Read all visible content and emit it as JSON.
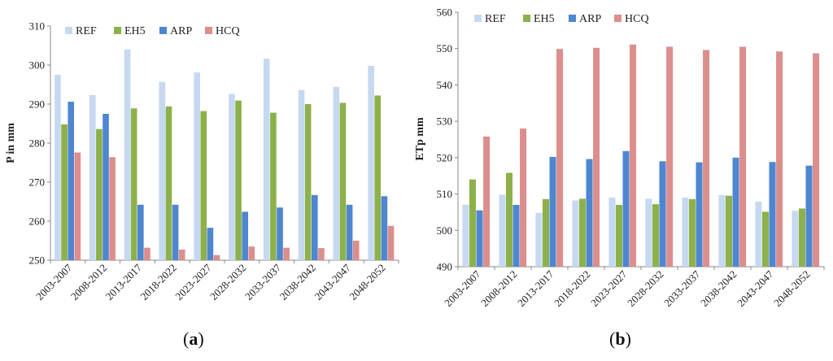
{
  "chart_data": [
    {
      "type": "bar",
      "panel_label": "a",
      "ylabel": "P in mm",
      "ylim": [
        250,
        310
      ],
      "yticks": [
        250,
        260,
        270,
        280,
        290,
        300,
        310
      ],
      "grid": false,
      "legend": "top-left",
      "categories": [
        "2003-2007",
        "2008-2012",
        "2013-2017",
        "2018-2022",
        "2023-2027",
        "2028-2032",
        "2033-2037",
        "2038-2042",
        "2043-2047",
        "2048-2052"
      ],
      "series": [
        {
          "name": "REF",
          "color": "#c6d9f1",
          "values": [
            297.5,
            292.3,
            304.0,
            295.7,
            298.1,
            292.6,
            301.6,
            293.6,
            294.4,
            299.8
          ]
        },
        {
          "name": "EH5",
          "color": "#8db14a",
          "values": [
            284.8,
            283.6,
            288.9,
            289.4,
            288.2,
            290.9,
            287.8,
            290.0,
            290.3,
            292.2
          ]
        },
        {
          "name": "ARP",
          "color": "#4f86d0",
          "values": [
            290.6,
            287.5,
            264.2,
            264.2,
            258.3,
            262.4,
            263.5,
            266.7,
            264.2,
            266.4
          ]
        },
        {
          "name": "HCQ",
          "color": "#dc8e8d",
          "values": [
            277.6,
            276.4,
            253.2,
            252.7,
            251.3,
            253.5,
            253.2,
            253.1,
            255.0,
            258.8
          ]
        }
      ]
    },
    {
      "type": "bar",
      "panel_label": "b",
      "ylabel": "ETp mm",
      "ylim": [
        490,
        560
      ],
      "yticks": [
        490,
        500,
        510,
        520,
        530,
        540,
        550,
        560
      ],
      "grid": false,
      "legend": "top-left",
      "categories": [
        "2003-2007",
        "2008-2012",
        "2013-2017",
        "2018-2022",
        "2023-2027",
        "2028-2032",
        "2033-2037",
        "2038-2042",
        "2043-2047",
        "2048-2052"
      ],
      "series": [
        {
          "name": "REF",
          "color": "#c6d9f1",
          "values": [
            507.0,
            509.8,
            504.8,
            508.2,
            509.0,
            508.7,
            509.0,
            509.7,
            507.9,
            505.4
          ]
        },
        {
          "name": "EH5",
          "color": "#8db14a",
          "values": [
            514.0,
            515.8,
            508.6,
            508.7,
            507.0,
            507.2,
            508.6,
            509.5,
            505.1,
            506.0
          ]
        },
        {
          "name": "ARP",
          "color": "#4f86d0",
          "values": [
            505.5,
            507.0,
            520.2,
            519.6,
            521.8,
            519.0,
            518.7,
            520.0,
            518.8,
            517.8
          ]
        },
        {
          "name": "HCQ",
          "color": "#dc8e8d",
          "values": [
            525.8,
            528.0,
            549.9,
            550.2,
            551.1,
            550.5,
            549.6,
            550.5,
            549.2,
            548.7
          ]
        }
      ]
    }
  ]
}
